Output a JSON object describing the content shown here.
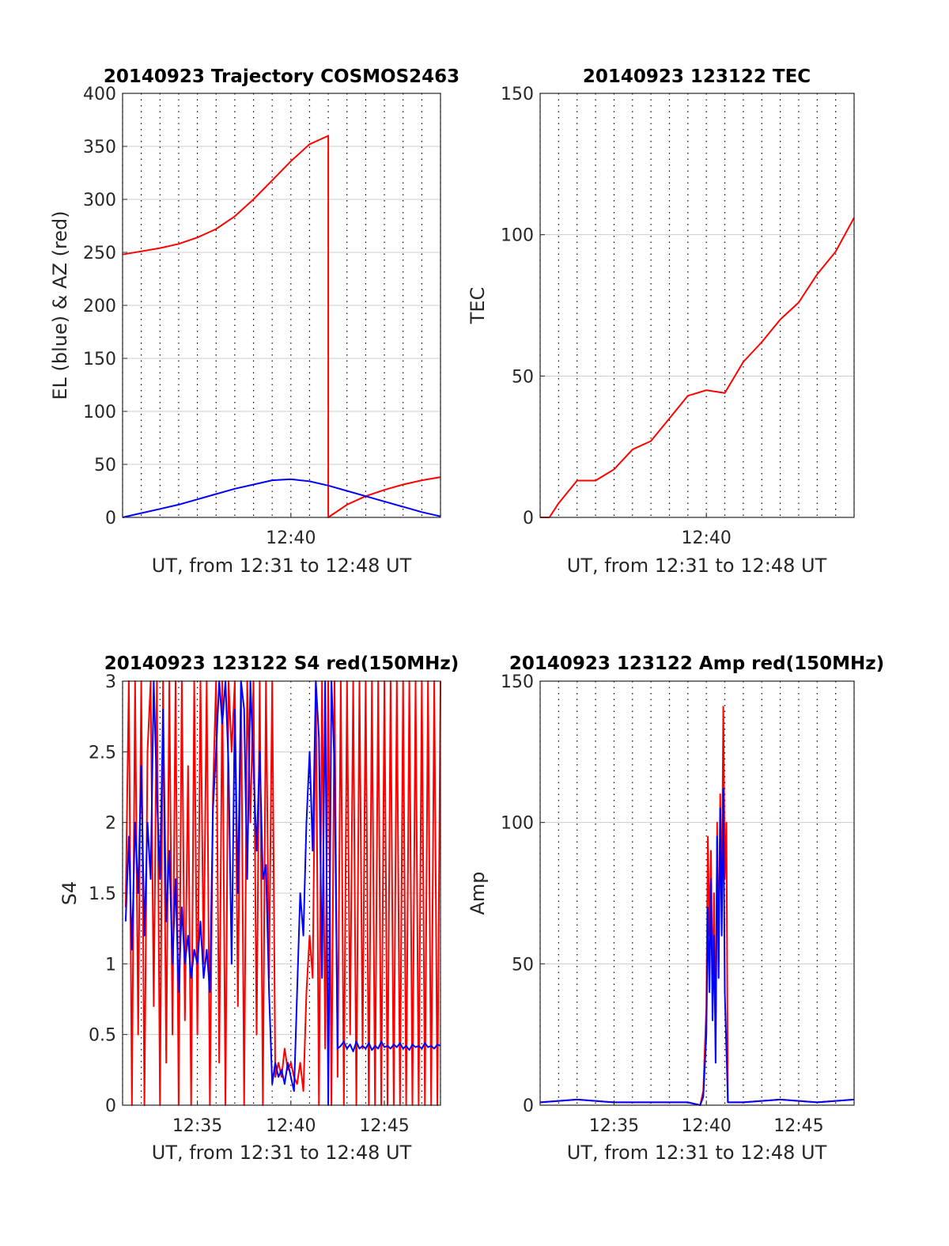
{
  "figure": {
    "xlabel": "UT, from 12:31 to 12:48 UT",
    "colors": {
      "red": "#ff0000",
      "blue": "#0000ff",
      "grid": "#cccccc",
      "axis": "#262626"
    }
  },
  "chart_data": [
    {
      "id": "trajectory",
      "type": "line",
      "title": "20140923 Trajectory COSMOS2463",
      "xlabel": "UT, from 12:31 to 12:48 UT",
      "ylabel": "EL (blue) & AZ (red)",
      "xlim": [
        "12:31",
        "12:48"
      ],
      "xticks": [
        "12:40"
      ],
      "ylim": [
        0,
        400
      ],
      "yticks": [
        "0",
        "50",
        "100",
        "150",
        "200",
        "250",
        "300",
        "350",
        "400"
      ],
      "grid": true,
      "series": [
        {
          "color": "#ff0000",
          "x": [
            "12:31",
            "12:32",
            "12:33",
            "12:34",
            "12:35",
            "12:36",
            "12:37",
            "12:38",
            "12:39",
            "12:40",
            "12:41",
            "12:42",
            "12:42",
            "12:43",
            "12:44",
            "12:45",
            "12:46",
            "12:47",
            "12:48"
          ],
          "values": [
            248,
            251,
            254,
            258,
            264,
            272,
            284,
            300,
            318,
            336,
            352,
            360,
            0,
            12,
            20,
            26,
            31,
            35,
            38
          ]
        },
        {
          "color": "#0000ff",
          "x": [
            "12:31",
            "12:32",
            "12:33",
            "12:34",
            "12:35",
            "12:36",
            "12:37",
            "12:38",
            "12:39",
            "12:40",
            "12:41",
            "12:42",
            "12:43",
            "12:44",
            "12:45",
            "12:46",
            "12:47",
            "12:48"
          ],
          "values": [
            0,
            4,
            8,
            12,
            17,
            22,
            27,
            31,
            35,
            36,
            34,
            30,
            25,
            20,
            15,
            10,
            5,
            1
          ]
        }
      ]
    },
    {
      "id": "tec",
      "type": "line",
      "title": "20140923 123122 TEC",
      "xlabel": "UT, from 12:31 to 12:48 UT",
      "ylabel": "TEC",
      "xlim": [
        "12:31",
        "12:48"
      ],
      "xticks": [
        "12:40"
      ],
      "ylim": [
        0,
        150
      ],
      "yticks": [
        "0",
        "50",
        "100",
        "150"
      ],
      "grid": true,
      "series": [
        {
          "color": "#ff0000",
          "x": [
            "12:31",
            "12:31:30",
            "12:32",
            "12:33",
            "12:34",
            "12:35",
            "12:36",
            "12:37",
            "12:38",
            "12:39",
            "12:40",
            "12:41",
            "12:42",
            "12:43",
            "12:44",
            "12:45",
            "12:46",
            "12:47",
            "12:48"
          ],
          "values": [
            0,
            0,
            5,
            13,
            13,
            17,
            24,
            27,
            35,
            43,
            45,
            44,
            55,
            62,
            70,
            76,
            86,
            94,
            106
          ]
        }
      ]
    },
    {
      "id": "s4",
      "type": "line",
      "title": "20140923 123122 S4 red(150MHz)",
      "xlabel": "UT, from 12:31 to 12:48 UT",
      "ylabel": "S4",
      "xlim": [
        "12:31",
        "12:48"
      ],
      "xticks": [
        "12:35",
        "12:40",
        "12:45"
      ],
      "ylim": [
        0,
        3
      ],
      "yticks": [
        "0",
        "0.5",
        "1",
        "1.5",
        "2",
        "2.5",
        "3"
      ],
      "grid": true,
      "series": [
        {
          "color": "#ff0000",
          "x": [
            "12:31:10",
            "12:31:20",
            "12:31:30",
            "12:31:40",
            "12:31:50",
            "12:32:00",
            "12:32:10",
            "12:32:20",
            "12:32:30",
            "12:32:40",
            "12:32:50",
            "12:33:00",
            "12:33:10",
            "12:33:20",
            "12:33:30",
            "12:33:40",
            "12:33:50",
            "12:34:00",
            "12:34:10",
            "12:34:20",
            "12:34:30",
            "12:34:40",
            "12:34:50",
            "12:35:00",
            "12:35:10",
            "12:35:20",
            "12:35:30",
            "12:35:40",
            "12:35:50",
            "12:36:00",
            "12:36:10",
            "12:36:20",
            "12:36:30",
            "12:36:40",
            "12:36:50",
            "12:37:00",
            "12:37:10",
            "12:37:20",
            "12:37:30",
            "12:37:40",
            "12:37:50",
            "12:38:00",
            "12:38:10",
            "12:38:20",
            "12:38:30",
            "12:38:40",
            "12:38:50",
            "12:39:00",
            "12:39:10",
            "12:39:20",
            "12:39:30",
            "12:39:40",
            "12:39:50",
            "12:40:00",
            "12:40:10",
            "12:40:20",
            "12:40:30",
            "12:40:40",
            "12:40:50",
            "12:41:00",
            "12:41:10",
            "12:41:20",
            "12:41:30",
            "12:41:40",
            "12:41:50",
            "12:42:00",
            "12:42:10",
            "12:42:20",
            "12:42:30",
            "12:42:40",
            "12:42:50",
            "12:43:00",
            "12:43:10",
            "12:43:20",
            "12:43:30",
            "12:43:40",
            "12:43:50",
            "12:44:00",
            "12:44:10",
            "12:44:20",
            "12:44:30",
            "12:44:40",
            "12:44:50",
            "12:45:00",
            "12:45:10",
            "12:45:20",
            "12:45:30",
            "12:45:40",
            "12:45:50",
            "12:46:00",
            "12:46:10",
            "12:46:20",
            "12:46:30",
            "12:46:40",
            "12:46:50",
            "12:47:00",
            "12:47:10",
            "12:47:20",
            "12:47:30",
            "12:47:40",
            "12:47:50",
            "12:48:00"
          ],
          "values": [
            1.4,
            3,
            0,
            3,
            0.5,
            3,
            0,
            2.5,
            3,
            0.7,
            3,
            0,
            3,
            0.3,
            3,
            0.5,
            3,
            0,
            3,
            0.6,
            2.4,
            0,
            3,
            0.5,
            3,
            1.0,
            3,
            0,
            2.2,
            3,
            0.3,
            3,
            0,
            3,
            2.5,
            3,
            0.7,
            3,
            0,
            3,
            2.0,
            3,
            0.5,
            3,
            0,
            3,
            0.9,
            3,
            0.2,
            0.3,
            0.2,
            0.4,
            0.25,
            0.3,
            0.2,
            0.15,
            0.3,
            0.1,
            0.8,
            1.2,
            0.9,
            3,
            0,
            3,
            0.4,
            3,
            0,
            3,
            0.2,
            3,
            0,
            3,
            0.5,
            3,
            0,
            3,
            0.4,
            3,
            0,
            3,
            0,
            3,
            0,
            3,
            0,
            3,
            0,
            3,
            0,
            3,
            0,
            3,
            0,
            3,
            0,
            3,
            0,
            3,
            0,
            3,
            0,
            3
          ]
        },
        {
          "color": "#0000ff",
          "x": [
            "12:31:10",
            "12:31:20",
            "12:31:30",
            "12:31:40",
            "12:31:50",
            "12:32:00",
            "12:32:10",
            "12:32:20",
            "12:32:30",
            "12:32:40",
            "12:32:50",
            "12:33:00",
            "12:33:10",
            "12:33:20",
            "12:33:30",
            "12:33:40",
            "12:33:50",
            "12:34:00",
            "12:34:10",
            "12:34:20",
            "12:34:30",
            "12:34:40",
            "12:34:50",
            "12:35:00",
            "12:35:10",
            "12:35:20",
            "12:35:30",
            "12:35:40",
            "12:35:50",
            "12:36:00",
            "12:36:10",
            "12:36:20",
            "12:36:30",
            "12:36:40",
            "12:36:50",
            "12:37:00",
            "12:37:10",
            "12:37:20",
            "12:37:30",
            "12:37:40",
            "12:37:50",
            "12:38:00",
            "12:38:10",
            "12:38:20",
            "12:38:30",
            "12:38:40",
            "12:38:50",
            "12:39:00",
            "12:39:10",
            "12:39:20",
            "12:39:30",
            "12:39:40",
            "12:39:50",
            "12:40:00",
            "12:40:10",
            "12:40:20",
            "12:40:30",
            "12:40:40",
            "12:40:50",
            "12:41:00",
            "12:41:10",
            "12:41:20",
            "12:41:30",
            "12:41:40",
            "12:41:50",
            "12:42:00",
            "12:42:10",
            "12:42:20",
            "12:42:30",
            "12:42:40",
            "12:42:50",
            "12:43:00",
            "12:43:10",
            "12:43:20",
            "12:43:30",
            "12:43:40",
            "12:43:50",
            "12:44:00",
            "12:44:10",
            "12:44:20",
            "12:44:30",
            "12:44:40",
            "12:44:50",
            "12:45:00",
            "12:45:10",
            "12:45:20",
            "12:45:30",
            "12:45:40",
            "12:45:50",
            "12:46:00",
            "12:46:10",
            "12:46:20",
            "12:46:30",
            "12:46:40",
            "12:46:50",
            "12:47:00",
            "12:47:10",
            "12:47:20",
            "12:47:30",
            "12:47:40",
            "12:47:50",
            "12:48:00"
          ],
          "values": [
            1.3,
            1.9,
            1.1,
            2.0,
            1.5,
            2.4,
            1.2,
            2.0,
            1.6,
            3.0,
            2.2,
            1.6,
            2.8,
            1.3,
            1.8,
            1.0,
            1.6,
            0.8,
            1.4,
            1.0,
            1.2,
            0.9,
            1.1,
            1.0,
            1.3,
            0.9,
            1.1,
            0.8,
            2.1,
            2.5,
            3.0,
            2.7,
            3.0,
            2.4,
            1.0,
            2.8,
            1.5,
            3.0,
            2.8,
            1.6,
            3.0,
            2.4,
            1.8,
            2.5,
            1.6,
            1.7,
            0.8,
            0.15,
            0.3,
            0.2,
            0.25,
            0.15,
            0.3,
            0.2,
            0.1,
            0.8,
            1.5,
            1.2,
            2.0,
            2.5,
            1.8,
            3.0,
            2.6,
            0.9,
            3.0,
            0.0,
            3.0,
            2.4,
            0.4,
            0.42,
            0.45,
            0.4,
            0.43,
            0.38,
            0.45,
            0.4,
            0.42,
            0.4,
            0.44,
            0.39,
            0.42,
            0.4,
            0.45,
            0.41,
            0.42,
            0.4,
            0.43,
            0.41,
            0.44,
            0.4,
            0.42,
            0.39,
            0.43,
            0.41,
            0.42,
            0.4,
            0.44,
            0.41,
            0.42,
            0.4,
            0.43,
            0.42
          ]
        }
      ]
    },
    {
      "id": "amp",
      "type": "line",
      "title": "20140923 123122 Amp red(150MHz)",
      "xlabel": "UT, from 12:31 to 12:48 UT",
      "ylabel": "Amp",
      "xlim": [
        "12:31",
        "12:48"
      ],
      "xticks": [
        "12:35",
        "12:40",
        "12:45"
      ],
      "ylim": [
        0,
        150
      ],
      "yticks": [
        "0",
        "50",
        "100",
        "150"
      ],
      "grid": true,
      "series": [
        {
          "color": "#ff0000",
          "x": [
            "12:31",
            "12:33",
            "12:35",
            "12:37",
            "12:39",
            "12:39:40",
            "12:39:50",
            "12:40:00",
            "12:40:05",
            "12:40:10",
            "12:40:15",
            "12:40:20",
            "12:40:25",
            "12:40:30",
            "12:40:35",
            "12:40:40",
            "12:40:45",
            "12:40:50",
            "12:40:55",
            "12:41:00",
            "12:41:05",
            "12:41:10",
            "12:41:20",
            "12:42",
            "12:44",
            "12:46",
            "12:48"
          ],
          "values": [
            1,
            2,
            1,
            1,
            1,
            0,
            5,
            35,
            95,
            60,
            90,
            40,
            75,
            20,
            100,
            50,
            110,
            70,
            141,
            80,
            100,
            1,
            1,
            1,
            2,
            1,
            2
          ]
        },
        {
          "color": "#0000ff",
          "x": [
            "12:31",
            "12:33",
            "12:35",
            "12:37",
            "12:39",
            "12:39:40",
            "12:39:50",
            "12:40:00",
            "12:40:05",
            "12:40:10",
            "12:40:15",
            "12:40:20",
            "12:40:25",
            "12:40:30",
            "12:40:35",
            "12:40:40",
            "12:40:45",
            "12:40:50",
            "12:40:55",
            "12:41:00",
            "12:41:05",
            "12:41:10",
            "12:41:20",
            "12:42",
            "12:44",
            "12:46",
            "12:48"
          ],
          "values": [
            1,
            2,
            1,
            1,
            1,
            0,
            3,
            25,
            70,
            40,
            80,
            30,
            60,
            15,
            95,
            45,
            105,
            60,
            112,
            40,
            20,
            1,
            1,
            1,
            2,
            1,
            2
          ]
        }
      ]
    }
  ]
}
